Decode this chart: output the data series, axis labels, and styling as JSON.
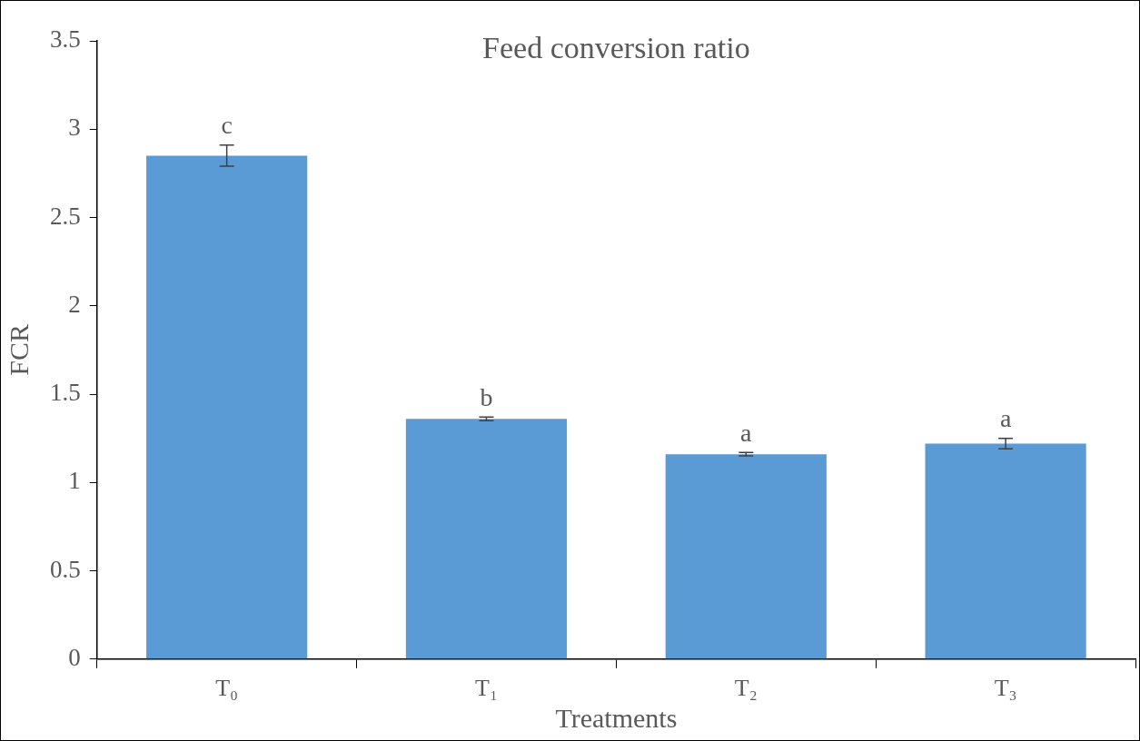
{
  "chart_data": {
    "type": "bar",
    "title": "Feed conversion ratio",
    "xlabel": "Treatments",
    "ylabel": "FCR",
    "categories": [
      "T₀",
      "T₁",
      "T₂",
      "T₃"
    ],
    "values": [
      2.85,
      1.36,
      1.16,
      1.22
    ],
    "errors": [
      0.06,
      0.01,
      0.01,
      0.03
    ],
    "color": "#5b9bd5",
    "ylim": [
      0,
      3.5
    ],
    "yticks": [
      0,
      0.5,
      1,
      1.5,
      2,
      2.5,
      3,
      3.5
    ],
    "grid": false,
    "legend": false,
    "annotations": [
      {
        "text": "c",
        "x": "T₀",
        "y": 2.91
      },
      {
        "text": "b",
        "x": "T₁",
        "y": 1.37
      },
      {
        "text": "a",
        "x": "T₂",
        "y": 1.17
      },
      {
        "text": "a",
        "x": "T₃",
        "y": 1.25
      }
    ]
  }
}
